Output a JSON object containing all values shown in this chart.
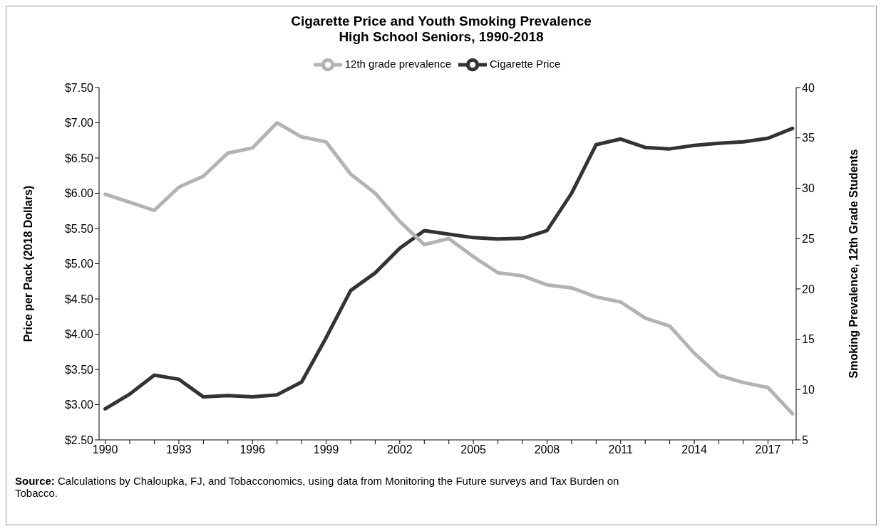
{
  "chart_data": {
    "type": "line",
    "title": "Cigarette Price and Youth Smoking Prevalence\nHigh School Seniors, 1990-2018",
    "ylabel": "Price per Pack (2018 Dollars)",
    "y2label": "Smoking Prevalence, 12th Grade Students",
    "x": [
      1990,
      1991,
      1992,
      1993,
      1994,
      1995,
      1996,
      1997,
      1998,
      1999,
      2000,
      2001,
      2002,
      2003,
      2004,
      2005,
      2006,
      2007,
      2008,
      2009,
      2010,
      2011,
      2012,
      2013,
      2014,
      2015,
      2016,
      2017,
      2018
    ],
    "series": [
      {
        "name": "Cigarette Price",
        "color": "#333333",
        "values": [
          2.94,
          3.15,
          3.42,
          3.36,
          3.11,
          3.13,
          3.11,
          3.14,
          3.32,
          3.95,
          4.62,
          4.87,
          5.22,
          5.47,
          5.42,
          5.37,
          5.35,
          5.36,
          5.47,
          6.0,
          6.69,
          6.77,
          6.65,
          6.63,
          6.68,
          6.71,
          6.73,
          6.78,
          6.92
        ]
      },
      {
        "name": "12th grade prevalence",
        "color": "#b3b3b3",
        "axis": "y2",
        "values": [
          29.4,
          28.6,
          27.8,
          30.1,
          31.2,
          33.5,
          34.0,
          36.5,
          35.1,
          34.6,
          31.4,
          29.5,
          26.7,
          24.4,
          25.0,
          23.2,
          21.6,
          21.3,
          20.4,
          20.1,
          19.2,
          18.7,
          17.1,
          16.3,
          13.6,
          11.4,
          10.7,
          10.2,
          7.6
        ]
      }
    ],
    "xlim": [
      1989.75,
      2018.15
    ],
    "xticks": [
      1990,
      {
        "value": 1991,
        "label": null
      },
      {
        "value": 1992,
        "label": null
      },
      1993,
      {
        "value": 1994,
        "label": null
      },
      {
        "value": 1995,
        "label": null
      },
      1996,
      {
        "value": 1997,
        "label": null
      },
      {
        "value": 1998,
        "label": null
      },
      1999,
      {
        "value": 2000,
        "label": null
      },
      {
        "value": 2001,
        "label": null
      },
      2002,
      {
        "value": 2003,
        "label": null
      },
      {
        "value": 2004,
        "label": null
      },
      2005,
      {
        "value": 2006,
        "label": null
      },
      {
        "value": 2007,
        "label": null
      },
      2008,
      {
        "value": 2009,
        "label": null
      },
      {
        "value": 2010,
        "label": null
      },
      2011,
      {
        "value": 2012,
        "label": null
      },
      {
        "value": 2013,
        "label": null
      },
      2014,
      {
        "value": 2015,
        "label": null
      },
      {
        "value": 2016,
        "label": null
      },
      2017,
      {
        "value": 2018,
        "label": null
      }
    ],
    "ylim": [
      2.5,
      7.5
    ],
    "yticks": [
      {
        "value": 2.5,
        "label": "$2.50"
      },
      {
        "value": 3,
        "label": "$3.00"
      },
      {
        "value": 3.5,
        "label": "$3.50"
      },
      {
        "value": 4,
        "label": "$4.00"
      },
      {
        "value": 4.5,
        "label": "$4.50"
      },
      {
        "value": 5,
        "label": "$5.00"
      },
      {
        "value": 5.5,
        "label": "$5.50"
      },
      {
        "value": 6,
        "label": "$6.00"
      },
      {
        "value": 6.5,
        "label": "$6.50"
      },
      {
        "value": 7,
        "label": "$7.00"
      },
      {
        "value": 7.5,
        "label": "$7.50"
      }
    ],
    "y2lim": [
      5,
      40
    ],
    "y2ticks": [
      5,
      10,
      15,
      20,
      25,
      30,
      35,
      40
    ],
    "grid": false,
    "legend": "top",
    "marker": "none",
    "line_style": "solid",
    "annotations": [
      "Source: Calculations by Chaloupka, FJ, and Tobacconomics, using data from Monitoring the Future surveys and Tax Burden on Tobacco."
    ]
  }
}
